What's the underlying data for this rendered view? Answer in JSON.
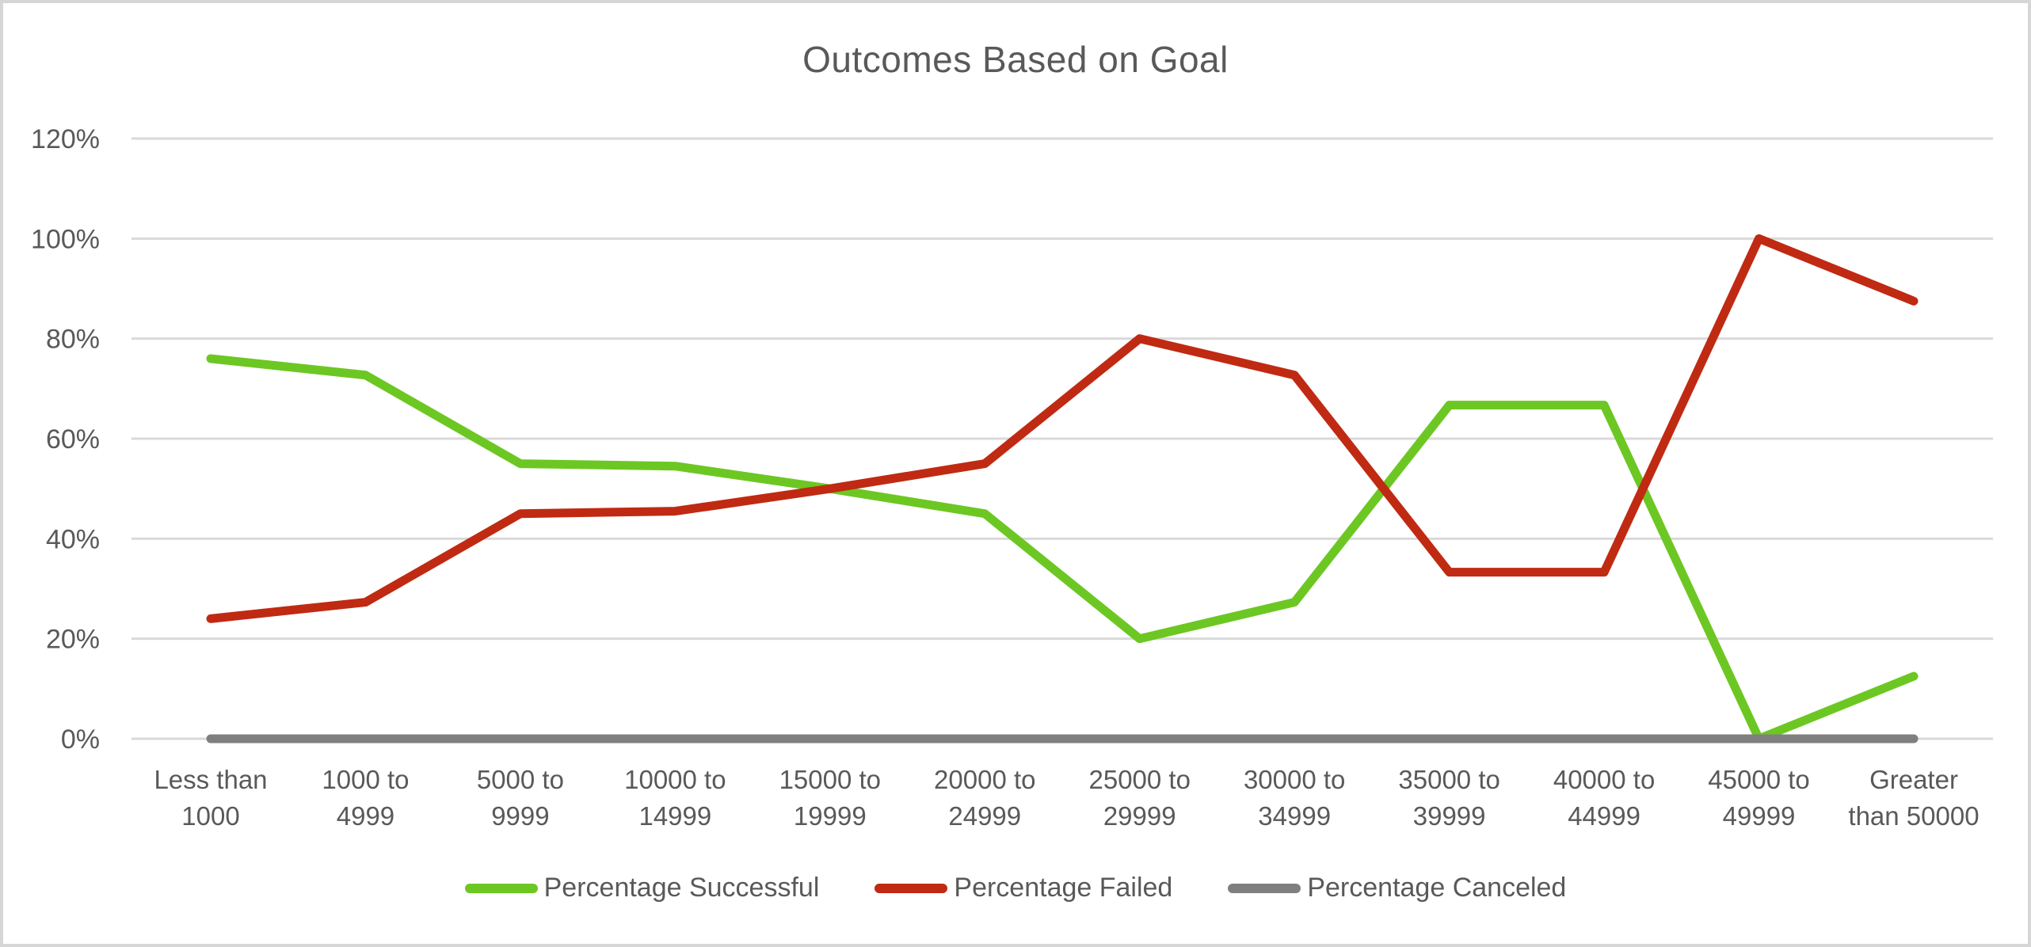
{
  "frame": {
    "background": "#FFFFFF",
    "border_color": "#D6D6D6"
  },
  "chart_data": {
    "type": "line",
    "title": "Outcomes Based on Goal",
    "title_color": "#595959",
    "text_color": "#595959",
    "gridline_color": "#D9D9D9",
    "grid": true,
    "legend_position": "bottom",
    "categories": [
      "Less than 1000",
      "1000 to 4999",
      "5000 to 9999",
      "10000 to 14999",
      "15000 to 19999",
      "20000 to 24999",
      "25000 to 29999",
      "30000 to 34999",
      "35000 to 39999",
      "40000 to 44999",
      "45000 to 49999",
      "Greater than 50000"
    ],
    "category_tick_lines": [
      [
        "Less than",
        "1000"
      ],
      [
        "1000 to",
        "4999"
      ],
      [
        "5000 to",
        "9999"
      ],
      [
        "10000 to",
        "14999"
      ],
      [
        "15000 to",
        "19999"
      ],
      [
        "20000 to",
        "24999"
      ],
      [
        "25000 to",
        "29999"
      ],
      [
        "30000 to",
        "34999"
      ],
      [
        "35000 to",
        "39999"
      ],
      [
        "40000 to",
        "44999"
      ],
      [
        "45000 to",
        "49999"
      ],
      [
        "Greater",
        "than 50000"
      ]
    ],
    "series": [
      {
        "name": "Percentage Successful",
        "color": "#6CC723",
        "values": [
          76,
          72.7,
          55,
          54.5,
          50,
          45,
          20,
          27.3,
          66.7,
          66.7,
          0,
          12.5
        ]
      },
      {
        "name": "Percentage Failed",
        "color": "#C02A12",
        "values": [
          24,
          27.3,
          45,
          45.5,
          50,
          55,
          80,
          72.7,
          33.3,
          33.3,
          100,
          87.5
        ]
      },
      {
        "name": "Percentage Canceled",
        "color": "#7F7F7F",
        "values": [
          0,
          0,
          0,
          0,
          0,
          0,
          0,
          0,
          0,
          0,
          0,
          0
        ]
      }
    ],
    "y_axis": {
      "min": 0,
      "max": 120,
      "tick_step": 20,
      "unit": "%",
      "ticks": [
        "0%",
        "20%",
        "40%",
        "60%",
        "80%",
        "100%",
        "120%"
      ]
    }
  }
}
